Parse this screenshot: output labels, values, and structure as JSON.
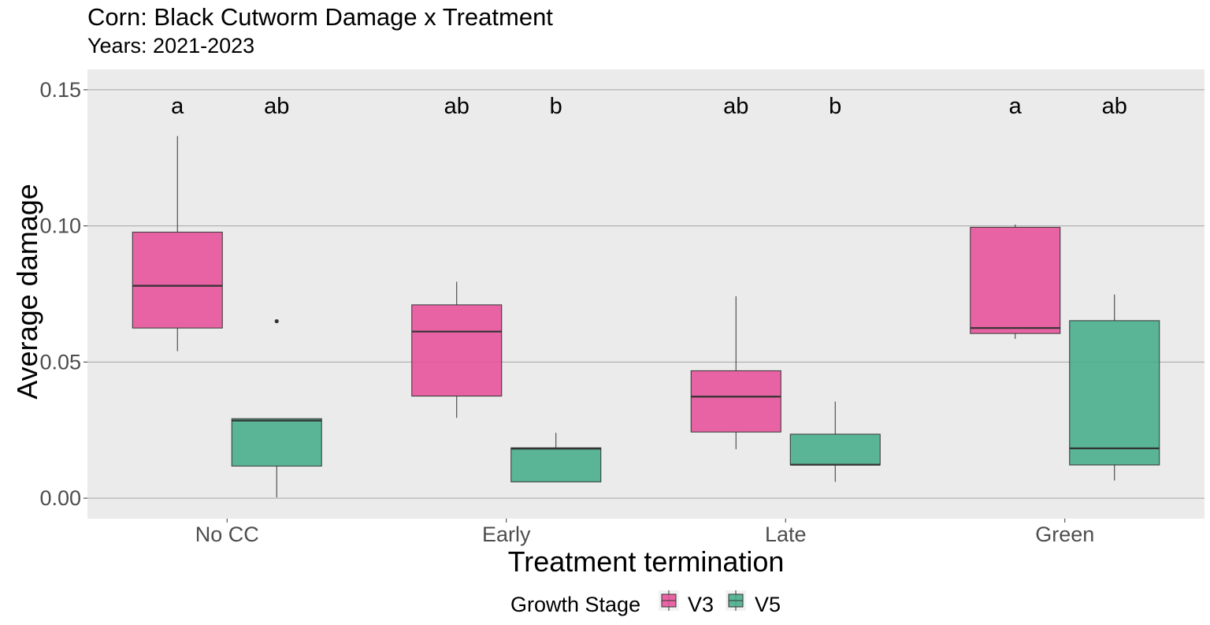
{
  "chart_data": {
    "type": "boxplot",
    "title": "Corn: Black Cutworm Damage x Treatment",
    "subtitle": "Years: 2021-2023",
    "xlabel": "Treatment termination",
    "ylabel": "Average damage",
    "ylim": [
      -0.0075,
      0.1575
    ],
    "yticks": [
      0.0,
      0.05,
      0.1,
      0.15
    ],
    "ytick_labels": [
      "0.00",
      "0.05",
      "0.10",
      "0.15"
    ],
    "grid": true,
    "legend_position": "bottom",
    "legend_title": "Growth Stage",
    "categories": [
      "No CC",
      "Early",
      "Late",
      "Green"
    ],
    "series": [
      {
        "name": "V3",
        "color": "#e7509a",
        "boxes": [
          {
            "category": "No CC",
            "whisker_low": 0.054,
            "q1": 0.0625,
            "median": 0.078,
            "q3": 0.0977,
            "whisker_high": 0.133,
            "outliers": []
          },
          {
            "category": "Early",
            "whisker_low": 0.0295,
            "q1": 0.0375,
            "median": 0.0612,
            "q3": 0.071,
            "whisker_high": 0.0795,
            "outliers": []
          },
          {
            "category": "Late",
            "whisker_low": 0.018,
            "q1": 0.0243,
            "median": 0.0373,
            "q3": 0.0468,
            "whisker_high": 0.0742,
            "outliers": []
          },
          {
            "category": "Green",
            "whisker_low": 0.0585,
            "q1": 0.0605,
            "median": 0.0625,
            "q3": 0.0995,
            "whisker_high": 0.1005,
            "outliers": []
          }
        ]
      },
      {
        "name": "V5",
        "color": "#45ad8b",
        "boxes": [
          {
            "category": "No CC",
            "whisker_low": 0.0003,
            "q1": 0.0118,
            "median": 0.0285,
            "q3": 0.0292,
            "whisker_high": 0.0292,
            "outliers": [
              0.065
            ]
          },
          {
            "category": "Early",
            "whisker_low": 0.006,
            "q1": 0.006,
            "median": 0.0182,
            "q3": 0.0185,
            "whisker_high": 0.024,
            "outliers": []
          },
          {
            "category": "Late",
            "whisker_low": 0.006,
            "q1": 0.0122,
            "median": 0.0123,
            "q3": 0.0235,
            "whisker_high": 0.0355,
            "outliers": []
          },
          {
            "category": "Green",
            "whisker_low": 0.0065,
            "q1": 0.0122,
            "median": 0.0183,
            "q3": 0.0652,
            "whisker_high": 0.0748,
            "outliers": []
          }
        ]
      }
    ],
    "significance_letters": [
      {
        "category": "No CC",
        "series": "V3",
        "text": "a"
      },
      {
        "category": "No CC",
        "series": "V5",
        "text": "ab"
      },
      {
        "category": "Early",
        "series": "V3",
        "text": "ab"
      },
      {
        "category": "Early",
        "series": "V5",
        "text": "b"
      },
      {
        "category": "Late",
        "series": "V3",
        "text": "ab"
      },
      {
        "category": "Late",
        "series": "V5",
        "text": "b"
      },
      {
        "category": "Green",
        "series": "V3",
        "text": "a"
      },
      {
        "category": "Green",
        "series": "V5",
        "text": "ab"
      }
    ],
    "significance_y": 0.1445
  }
}
